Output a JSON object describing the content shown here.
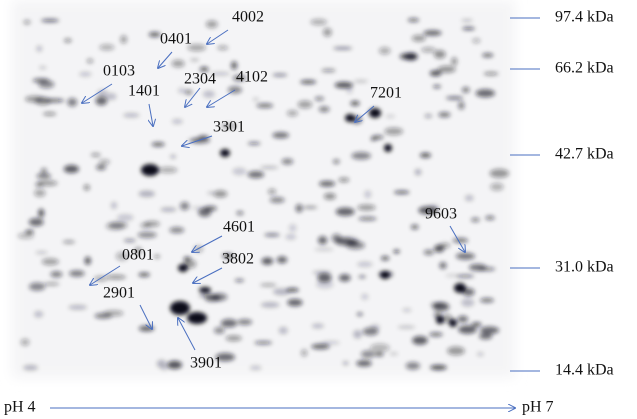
{
  "markers": [
    {
      "label": "97.4 kDa"
    },
    {
      "label": "66.2 kDa"
    },
    {
      "label": "42.7 kDa"
    },
    {
      "label": "31.0 kDa"
    },
    {
      "label": "14.4 kDa"
    }
  ],
  "spots": [
    {
      "label": "4002"
    },
    {
      "label": "0401"
    },
    {
      "label": "0103"
    },
    {
      "label": "2304"
    },
    {
      "label": "4102"
    },
    {
      "label": "1401"
    },
    {
      "label": "7201"
    },
    {
      "label": "3301"
    },
    {
      "label": "9603"
    },
    {
      "label": "4601"
    },
    {
      "label": "0801"
    },
    {
      "label": "3802"
    },
    {
      "label": "2901"
    },
    {
      "label": "3901"
    }
  ],
  "ph_axis": {
    "start": "pH 4",
    "end": "pH 7"
  }
}
